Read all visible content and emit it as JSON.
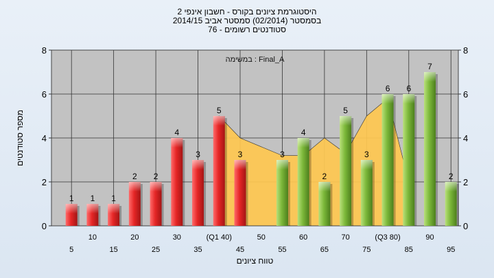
{
  "chart_data": {
    "type": "bar",
    "title_lines": [
      "היסטוגרמת ציונים בקורס - חשבון אינפי 2",
      "בסמסטר  (02/2014)  סמסטר אביב 2014/15",
      "סטודנטים רשומים - 76"
    ],
    "annotation": "במשימה : Final_A",
    "xlabel": "טווח ציונים",
    "ylabel": "מספר סטודנטים",
    "ylim": [
      0,
      8
    ],
    "yticks": [
      0,
      2,
      4,
      6,
      8
    ],
    "grid": true,
    "categories": [
      "5",
      "10",
      "15",
      "20",
      "25",
      "30",
      "35",
      "40",
      "45",
      "50",
      "55",
      "60",
      "65",
      "70",
      "75",
      "80",
      "85",
      "90",
      "95"
    ],
    "tick_labels": [
      "5",
      "10",
      "15",
      "20",
      "25",
      "30",
      "35",
      "(Q1 40)",
      "45",
      "50",
      "55",
      "60",
      "65",
      "70",
      "75",
      "(Q3 80)",
      "85",
      "90",
      "95"
    ],
    "values": [
      1,
      1,
      1,
      2,
      2,
      4,
      3,
      5,
      3,
      0,
      3,
      4,
      2,
      5,
      3,
      6,
      6,
      7,
      2
    ],
    "data_labels": [
      "1",
      "1",
      "1",
      "2",
      "2",
      "4",
      "3",
      "5",
      "3",
      "",
      "3",
      "4",
      "2",
      "5",
      "3",
      "6",
      "6",
      "7",
      "2"
    ],
    "failing_color": "#e52626",
    "passing_color": "#7cb83a",
    "area": {
      "color": "#ffc850",
      "x": [
        "40",
        "45",
        "50",
        "55",
        "60",
        "65",
        "70",
        "75",
        "80",
        "85"
      ],
      "values": [
        5,
        4,
        3.6,
        3.2,
        3.2,
        4,
        3.3,
        5,
        5.8,
        2
      ]
    }
  }
}
